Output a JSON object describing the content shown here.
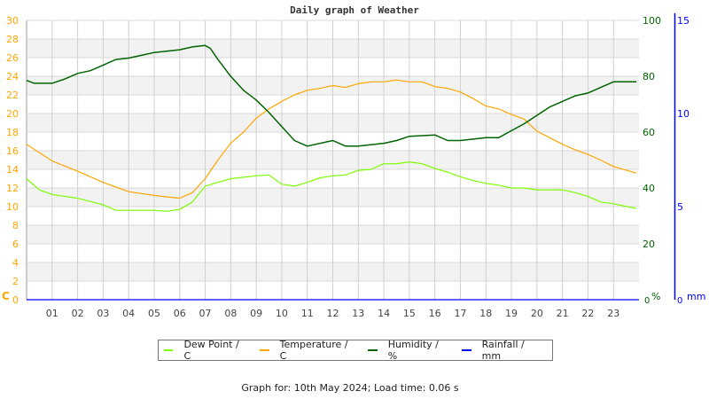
{
  "chart_data": {
    "type": "line",
    "title": "Daily graph of Weather",
    "x_ticks": [
      "01",
      "02",
      "03",
      "04",
      "05",
      "06",
      "07",
      "08",
      "09",
      "10",
      "11",
      "12",
      "13",
      "14",
      "15",
      "16",
      "17",
      "18",
      "19",
      "20",
      "21",
      "22",
      "23"
    ],
    "xlim": [
      0,
      24
    ],
    "y_left": {
      "label": "C",
      "ylim": [
        0,
        30
      ],
      "ticks": [
        0,
        2,
        4,
        6,
        8,
        10,
        12,
        14,
        16,
        18,
        20,
        22,
        24,
        26,
        28,
        30
      ],
      "color": "#ffa500"
    },
    "y_right_humidity": {
      "label": "%",
      "ylim": [
        0,
        100
      ],
      "ticks": [
        0,
        20,
        40,
        60,
        80,
        100
      ],
      "color": "#006400"
    },
    "y_right_rain": {
      "label": "mm",
      "ylim": [
        0,
        15
      ],
      "ticks": [
        0,
        5,
        10,
        15
      ],
      "color": "#0000ff"
    },
    "grid": true,
    "legend_position": "bottom",
    "series": [
      {
        "name": "Dew Point / C",
        "axis": "left",
        "color": "#7cfc00",
        "x": [
          0,
          0.5,
          1,
          2,
          3,
          3.5,
          4,
          5,
          5.5,
          6,
          6.5,
          7,
          7.5,
          8,
          9,
          9.5,
          10,
          10.5,
          11,
          11.5,
          12,
          12.5,
          13,
          13.5,
          14,
          14.5,
          15,
          15.5,
          16,
          16.5,
          17,
          17.5,
          18,
          18.5,
          19,
          19.5,
          20,
          21,
          21.5,
          22,
          22.5,
          23,
          23.9
        ],
        "y": [
          13.0,
          11.8,
          11.3,
          10.9,
          10.2,
          9.6,
          9.6,
          9.6,
          9.5,
          9.7,
          10.5,
          12.2,
          12.6,
          13.0,
          13.3,
          13.4,
          12.4,
          12.2,
          12.6,
          13.1,
          13.3,
          13.4,
          13.9,
          14.0,
          14.6,
          14.6,
          14.8,
          14.6,
          14.1,
          13.7,
          13.2,
          12.8,
          12.5,
          12.3,
          12.0,
          12.0,
          11.8,
          11.8,
          11.5,
          11.1,
          10.5,
          10.3,
          9.8
        ]
      },
      {
        "name": "Temperature / C",
        "axis": "left",
        "color": "#ffa500",
        "x": [
          0,
          1,
          2,
          3,
          4,
          5,
          6,
          6.5,
          7,
          7.5,
          8,
          8.5,
          9,
          9.5,
          10,
          10.5,
          11,
          11.5,
          12,
          12.5,
          13,
          13.5,
          14,
          14.5,
          15,
          15.5,
          16,
          16.5,
          17,
          17.5,
          18,
          18.5,
          19,
          19.5,
          20,
          20.5,
          21,
          21.5,
          22,
          22.5,
          23,
          23.9
        ],
        "y": [
          16.7,
          14.9,
          13.8,
          12.6,
          11.6,
          11.2,
          10.9,
          11.5,
          13.0,
          15.0,
          16.8,
          18.0,
          19.5,
          20.5,
          21.3,
          22.0,
          22.5,
          22.7,
          23.0,
          22.8,
          23.2,
          23.4,
          23.4,
          23.6,
          23.4,
          23.4,
          22.9,
          22.7,
          22.3,
          21.6,
          20.8,
          20.5,
          19.9,
          19.4,
          18.1,
          17.4,
          16.7,
          16.1,
          15.6,
          15.0,
          14.3,
          13.6
        ]
      },
      {
        "name": "Humidity / %",
        "axis": "humidity",
        "color": "#006400",
        "x": [
          0,
          0.3,
          1,
          1.5,
          2,
          2.5,
          3,
          3.5,
          4,
          4.5,
          5,
          6,
          6.5,
          7,
          7.2,
          7.5,
          8,
          8.5,
          9,
          9.5,
          10,
          10.5,
          11,
          12,
          12.5,
          13,
          14,
          14.5,
          15,
          16,
          16.5,
          17,
          18,
          18.5,
          19,
          19.5,
          20,
          20.5,
          21,
          21.5,
          22,
          22.5,
          23,
          23.9
        ],
        "y": [
          78.5,
          77.5,
          77.5,
          79,
          81,
          82,
          84,
          86,
          86.5,
          87.5,
          88.5,
          89.5,
          90.5,
          91,
          90,
          86,
          80,
          75,
          71.5,
          67,
          62,
          57,
          55,
          57,
          55,
          55,
          56,
          57,
          58.5,
          59,
          57,
          57,
          58,
          58,
          60.5,
          63,
          66,
          69,
          71,
          73,
          74,
          76,
          78,
          78
        ]
      },
      {
        "name": "Rainfall / mm",
        "axis": "rain",
        "color": "#0000ff",
        "x": [
          0,
          24
        ],
        "y": [
          0,
          0
        ]
      }
    ]
  },
  "footer": "Graph for: 10th May 2024; Load time: 0.06 s"
}
